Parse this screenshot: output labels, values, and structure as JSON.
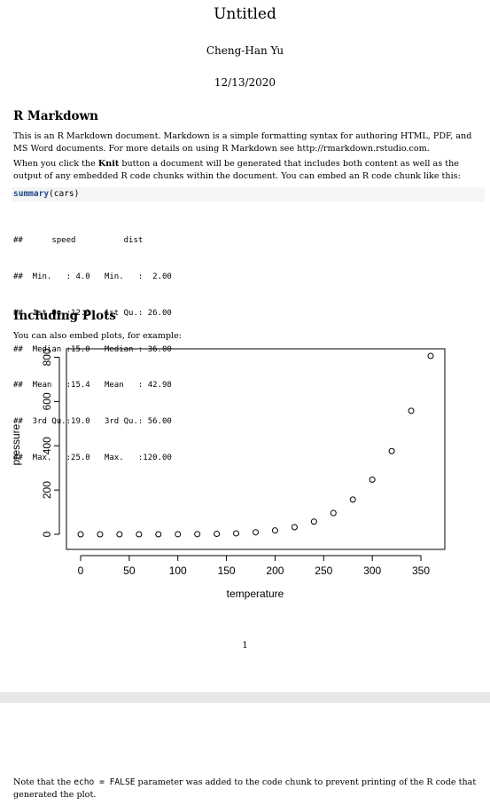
{
  "header": {
    "title": "Untitled",
    "author": "Cheng-Han Yu",
    "date": "12/13/2020"
  },
  "section1": {
    "heading": "R Markdown",
    "para1_line1": "This is an R Markdown document. Markdown is a simple formatting syntax for authoring HTML, PDF, and",
    "para1_line2": "MS Word documents. For more details on using R Markdown see http://rmarkdown.rstudio.com.",
    "para2_line1_pre": "When you click the ",
    "para2_bold": "Knit",
    "para2_line1_post": " button a document will be generated that includes both content as well as the",
    "para2_line2": "output of any embedded R code chunks within the document. You can embed an R code chunk like this:",
    "code_fn": "summary",
    "code_args": "(cars)",
    "output_lines": [
      "##      speed          dist     ",
      "##  Min.   : 4.0   Min.   :  2.00  ",
      "##  1st Qu.:12.0   1st Qu.: 26.00  ",
      "##  Median :15.0   Median : 36.00  ",
      "##  Mean   :15.4   Mean   : 42.98  ",
      "##  3rd Qu.:19.0   3rd Qu.: 56.00  ",
      "##  Max.   :25.0   Max.   :120.00  "
    ]
  },
  "section2": {
    "heading": "Including Plots",
    "para": "You can also embed plots, for example:"
  },
  "chart_data": {
    "type": "scatter",
    "xlabel": "temperature",
    "ylabel": "pressure",
    "xlim": [
      0,
      360
    ],
    "ylim": [
      0,
      806
    ],
    "xticks": [
      0,
      50,
      100,
      150,
      200,
      250,
      300,
      350
    ],
    "yticks": [
      0,
      200,
      400,
      600,
      800
    ],
    "x": [
      0,
      20,
      40,
      60,
      80,
      100,
      120,
      140,
      160,
      180,
      200,
      220,
      240,
      260,
      280,
      300,
      320,
      340,
      360
    ],
    "y": [
      0.0002,
      0.0012,
      0.006,
      0.03,
      0.09,
      0.27,
      0.75,
      1.85,
      4.2,
      8.8,
      17.3,
      32.1,
      57,
      96,
      157,
      247,
      376,
      558,
      806
    ]
  },
  "page_number": "1",
  "footer": {
    "pre": "Note that the ",
    "code1": "echo = FALSE",
    "post": " parameter was added to the code chunk to prevent printing of the R code that",
    "line2": "generated the plot."
  }
}
